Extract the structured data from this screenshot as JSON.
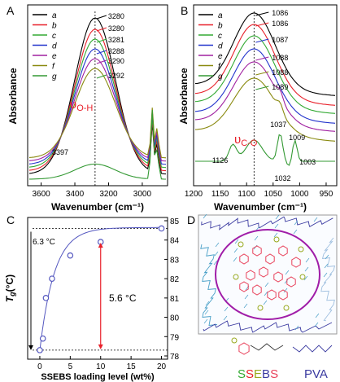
{
  "panels": {
    "A": {
      "letter": "A",
      "xlabel": "Wavenumber (cm⁻¹)",
      "ylabel": "Absorbance",
      "mode_label": "υ",
      "mode_sub": "O-H",
      "xticks": [
        3600,
        3400,
        3200,
        3000
      ]
    },
    "B": {
      "letter": "B",
      "xlabel": "Wavenumber (cm⁻¹)",
      "ylabel": "Absorbance",
      "mode_label": "υ",
      "mode_sub": "C-O",
      "xticks": [
        1200,
        1150,
        1100,
        1050,
        1000,
        950
      ]
    },
    "C": {
      "letter": "C",
      "xlabel": "SSEBS loading level (wt%)",
      "ylabel": "T",
      "ylabel_sub": "g",
      "ylabel_unit": "(°C)",
      "annot_left": "6.3 °C",
      "annot_mid": "5.6 °C",
      "xticks": [
        0,
        5,
        10,
        15,
        20
      ],
      "yticks": [
        78,
        79,
        80,
        81,
        82,
        83,
        84,
        85
      ]
    },
    "D": {
      "letter": "D",
      "legend_ssebs": "SSEBS",
      "legend_pva": "PVA"
    }
  },
  "legend_letters": [
    "a",
    "b",
    "c",
    "d",
    "e",
    "f",
    "g"
  ],
  "colors": {
    "a": "#000000",
    "b": "#e8202a",
    "c": "#33aa33",
    "d": "#2233cc",
    "e": "#a020a0",
    "f": "#8a8a10",
    "g": "#339933",
    "red_arrow": "#e8202a",
    "pva": "#3a3aa0",
    "ellipse": "#a01da8",
    "ssebs_ring": "#e8405a",
    "sulfonate": "#99aa20"
  },
  "chart_data": [
    {
      "type": "line",
      "panel": "A",
      "xlabel": "Wavenumber (cm⁻¹)",
      "ylabel": "Absorbance",
      "xlim": [
        3680,
        2850
      ],
      "x_reversed": true,
      "series": [
        {
          "name": "a",
          "peak_label": "3280"
        },
        {
          "name": "b",
          "peak_label": "3280"
        },
        {
          "name": "c",
          "peak_label": "3281"
        },
        {
          "name": "d",
          "peak_label": "3288"
        },
        {
          "name": "e",
          "peak_label": "3290"
        },
        {
          "name": "f",
          "peak_label": ""
        },
        {
          "name": "g",
          "peak_label": "3292"
        }
      ],
      "annotations": [
        "3397"
      ],
      "reference_line_x": 3280
    },
    {
      "type": "line",
      "panel": "B",
      "xlabel": "Wavenumber (cm⁻¹)",
      "ylabel": "Absorbance",
      "xlim": [
        1200,
        930
      ],
      "x_reversed": true,
      "series": [
        {
          "name": "a",
          "peak_label": "1086"
        },
        {
          "name": "b",
          "peak_label": "1086"
        },
        {
          "name": "c",
          "peak_label": ""
        },
        {
          "name": "d",
          "peak_label": "1087"
        },
        {
          "name": "e",
          "peak_label": "1088"
        },
        {
          "name": "f",
          "peak_label": "1088"
        },
        {
          "name": "g",
          "peak_label": "1089"
        }
      ],
      "annotations": [
        "1037",
        "1009",
        "1126",
        "1032",
        "1003"
      ],
      "reference_line_x": 1086
    },
    {
      "type": "scatter",
      "panel": "C",
      "xlabel": "SSEBS loading level (wt%)",
      "ylabel": "Tg (°C)",
      "xlim": [
        -2,
        21
      ],
      "ylim": [
        78,
        85
      ],
      "x": [
        0,
        0.5,
        1,
        2,
        5,
        10,
        20
      ],
      "y": [
        78.3,
        78.9,
        81.0,
        82.0,
        83.2,
        83.9,
        84.6
      ],
      "reference_lines_y": [
        78.3,
        84.6
      ]
    }
  ]
}
